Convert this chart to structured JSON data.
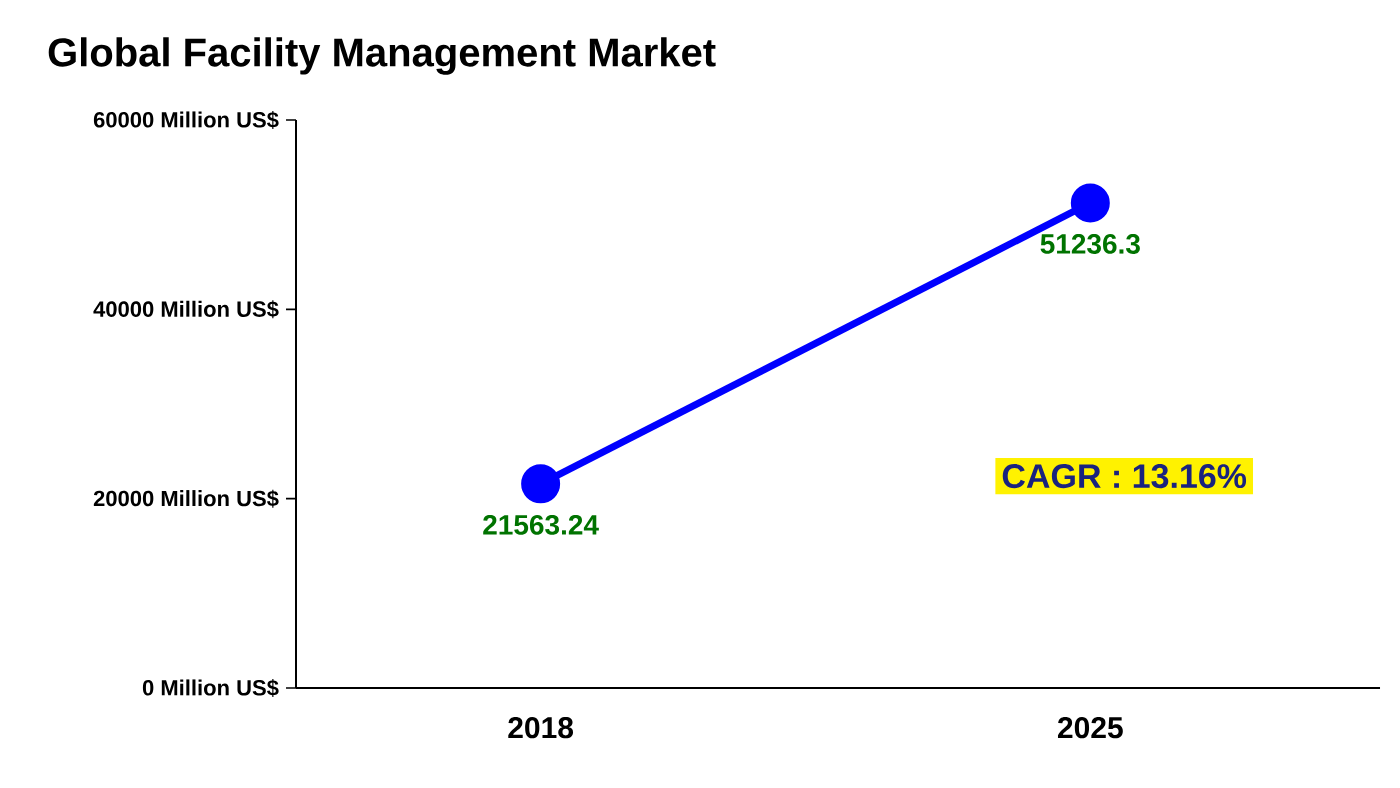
{
  "chart_data": {
    "type": "line",
    "title": "Global Facility Management Market",
    "categories": [
      "2018",
      "2025"
    ],
    "series": [
      {
        "color": "#0000ff",
        "values": [
          21563.24,
          51236.3
        ]
      }
    ],
    "ylim": [
      0,
      60000
    ],
    "yticks": [
      {
        "value": 0,
        "label": "0 Million US$"
      },
      {
        "value": 20000,
        "label": "20000 Million US$"
      },
      {
        "value": 40000,
        "label": "40000 Million US$"
      },
      {
        "value": 60000,
        "label": "60000 Million US$"
      }
    ],
    "data_labels": true,
    "marker": "circle",
    "annotations": [
      "CAGR : 13.16%"
    ]
  }
}
